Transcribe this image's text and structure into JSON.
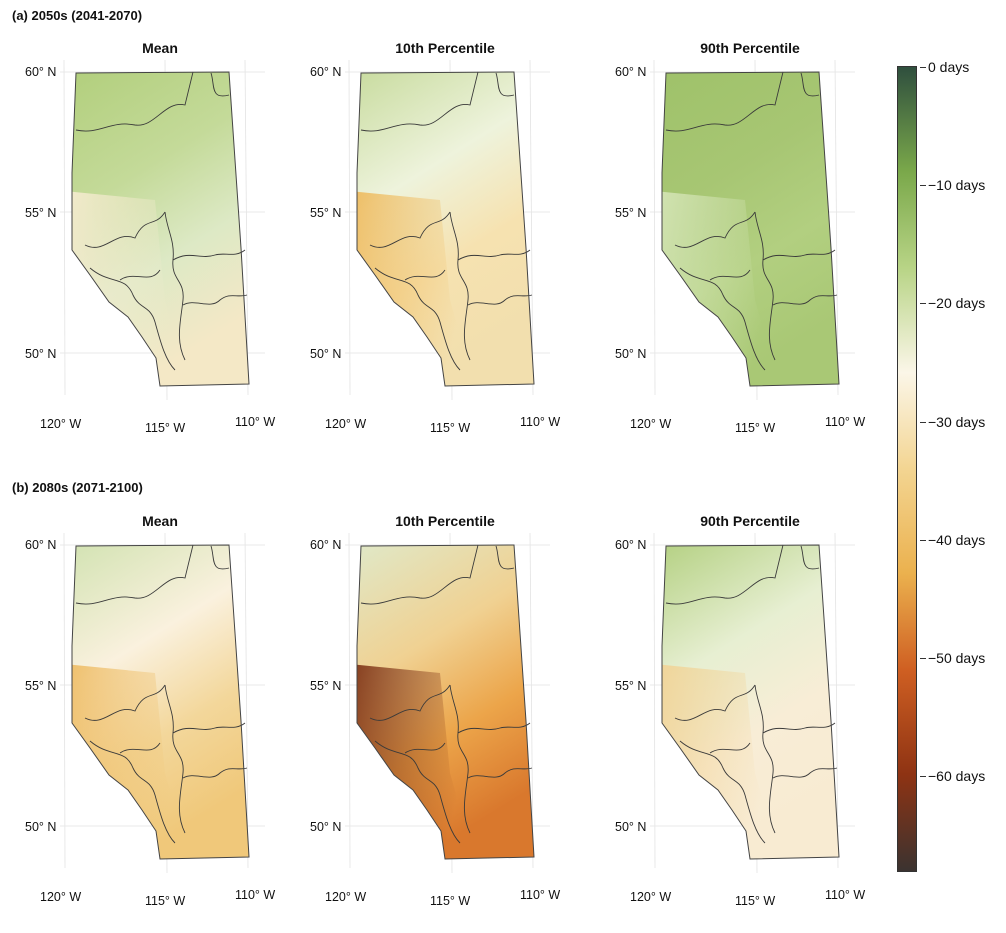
{
  "sections": [
    {
      "label": "(a) 2050s (2041-2070)",
      "panels": [
        {
          "title": "Mean",
          "scheme": "mean50"
        },
        {
          "title": "10th Percentile",
          "scheme": "p10_50"
        },
        {
          "title": "90th Percentile",
          "scheme": "p90_50"
        }
      ]
    },
    {
      "label": "(b) 2080s (2071-2100)",
      "panels": [
        {
          "title": "Mean",
          "scheme": "mean80"
        },
        {
          "title": "10th Percentile",
          "scheme": "p10_80"
        },
        {
          "title": "90th Percentile",
          "scheme": "p90_80"
        }
      ]
    }
  ],
  "axes": {
    "lat_labels": [
      "60° N",
      "55° N",
      "50° N"
    ],
    "lon_labels": [
      "120° W",
      "115° W",
      "110° W"
    ]
  },
  "colorbar": {
    "labels": [
      "0 days",
      "−10 days",
      "−20 days",
      "−30 days",
      "−40 days",
      "−50 days",
      "−60 days"
    ],
    "range_days": [
      -68,
      0
    ],
    "colors": [
      "#2f4f3e",
      "#7aa84a",
      "#b8d486",
      "#fbf6e8",
      "#f3d592",
      "#ebb14e",
      "#cf5f22",
      "#8e3313",
      "#3b3330"
    ]
  }
}
